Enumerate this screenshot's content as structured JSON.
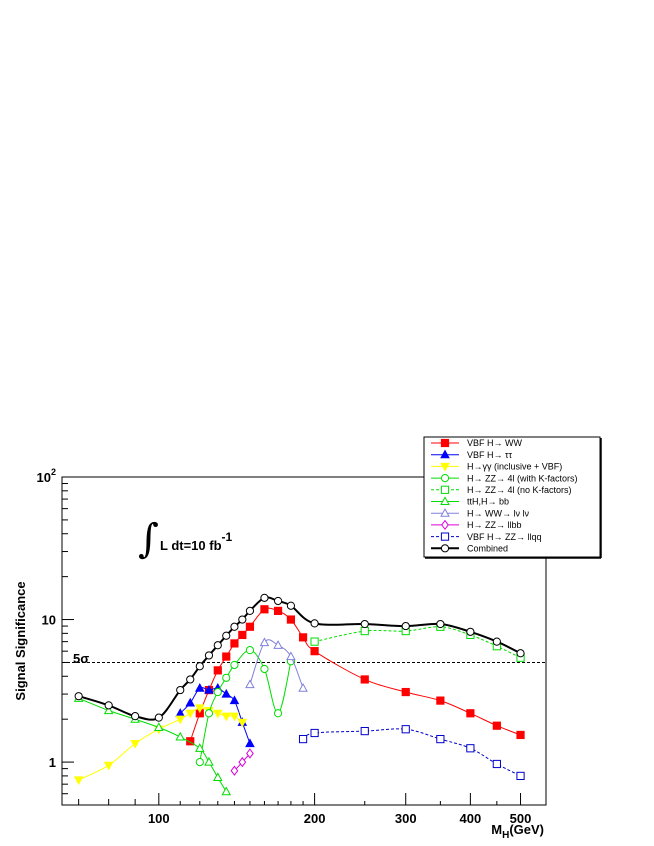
{
  "chart_data": {
    "type": "line",
    "ylabel": "Signal Significance",
    "xlabel": "M",
    "xlabel_sub": "H",
    "xlabel_unit": "(GeV)",
    "xscale": "log",
    "yscale": "log",
    "xlim": [
      65,
      560
    ],
    "ylim": [
      0.5,
      100
    ],
    "x_ticks": [
      100,
      200,
      300,
      400,
      500
    ],
    "y_ticks": [
      {
        "value": 1,
        "label": "1"
      },
      {
        "value": 10,
        "label": "10"
      },
      {
        "value": 100,
        "label": "10",
        "sup": "2"
      }
    ],
    "annotation": {
      "text": "L dt=10 fb",
      "sup": "-1",
      "integral": "∫"
    },
    "reference_line": {
      "value": 5,
      "label": "5σ",
      "style": "dashed"
    },
    "legend_position": "top-right",
    "series": [
      {
        "name": "VBF H→ WW",
        "color": "#ff0000",
        "marker": "square-filled",
        "dash": false,
        "x": [
          115,
          120,
          125,
          130,
          135,
          140,
          145,
          150,
          160,
          170,
          180,
          190,
          200,
          250,
          300,
          350,
          400,
          450,
          500
        ],
        "y": [
          1.4,
          2.2,
          3.2,
          4.4,
          5.5,
          6.8,
          7.8,
          8.9,
          11.8,
          11.5,
          10.0,
          7.5,
          6.0,
          3.8,
          3.1,
          2.7,
          2.2,
          1.8,
          1.55
        ]
      },
      {
        "name": "VBF H→ ττ",
        "color": "#0000ff",
        "marker": "triangle-up-filled",
        "dash": false,
        "x": [
          110,
          115,
          120,
          125,
          130,
          135,
          140,
          145,
          150
        ],
        "y": [
          2.2,
          2.6,
          3.3,
          3.2,
          3.3,
          3.0,
          2.7,
          1.9,
          1.35
        ]
      },
      {
        "name": "H→γγ (inclusive + VBF)",
        "color": "#ffff00",
        "marker": "triangle-down-filled",
        "dash": false,
        "x": [
          70,
          80,
          90,
          100,
          110,
          115,
          120,
          125,
          130,
          135,
          140,
          145
        ],
        "y": [
          0.75,
          0.95,
          1.35,
          1.7,
          2.0,
          2.2,
          2.4,
          2.3,
          2.2,
          2.1,
          2.1,
          1.9
        ]
      },
      {
        "name": "H→ ZZ→ 4l (with K-factors)",
        "color": "#00dd00",
        "marker": "circle-open",
        "dash": false,
        "x": [
          120,
          125,
          130,
          135,
          140,
          150,
          160,
          170,
          180
        ],
        "y": [
          1.0,
          2.2,
          3.1,
          3.9,
          4.8,
          6.1,
          4.5,
          2.2,
          5.1
        ]
      },
      {
        "name": "H→ ZZ→ 4l (no K-factors)",
        "color": "#00dd00",
        "marker": "square-open",
        "dash": true,
        "x": [
          200,
          250,
          300,
          350,
          400,
          450,
          500
        ],
        "y": [
          7.0,
          8.3,
          8.3,
          8.9,
          7.8,
          6.5,
          5.4
        ]
      },
      {
        "name": "ttH,H→ bb",
        "color": "#00dd00",
        "marker": "triangle-up-open",
        "dash": false,
        "x": [
          70,
          80,
          90,
          100,
          110,
          120,
          125,
          130,
          135
        ],
        "y": [
          2.8,
          2.3,
          2.0,
          1.75,
          1.5,
          1.25,
          1.0,
          0.78,
          0.62
        ]
      },
      {
        "name": "H→ WW→ lν lν",
        "color": "#8080dd",
        "marker": "triangle-up-open",
        "dash": false,
        "x": [
          150,
          160,
          170,
          180,
          190
        ],
        "y": [
          3.5,
          6.9,
          6.6,
          5.5,
          3.3
        ]
      },
      {
        "name": "H→ ZZ→ llbb",
        "color": "#dd00dd",
        "marker": "diamond-open",
        "dash": false,
        "x": [
          140,
          145,
          150
        ],
        "y": [
          0.87,
          1.0,
          1.15
        ]
      },
      {
        "name": "VBF H→ ZZ→ llqq",
        "color": "#0000cc",
        "marker": "square-open",
        "dash": true,
        "x": [
          190,
          200,
          250,
          300,
          350,
          400,
          450,
          500
        ],
        "y": [
          1.45,
          1.6,
          1.65,
          1.7,
          1.45,
          1.25,
          0.97,
          0.8
        ]
      },
      {
        "name": "Combined",
        "color": "#000000",
        "marker": "circle-open",
        "dash": false,
        "thick": true,
        "x": [
          70,
          80,
          90,
          100,
          110,
          115,
          120,
          125,
          130,
          135,
          140,
          145,
          150,
          160,
          170,
          180,
          200,
          250,
          300,
          350,
          400,
          450,
          500
        ],
        "y": [
          2.9,
          2.5,
          2.1,
          2.05,
          3.2,
          3.8,
          4.7,
          5.6,
          6.6,
          7.7,
          8.9,
          10.0,
          11.5,
          14.2,
          13.5,
          12.5,
          9.4,
          9.3,
          9.0,
          9.3,
          8.2,
          7.0,
          5.8
        ]
      }
    ]
  }
}
